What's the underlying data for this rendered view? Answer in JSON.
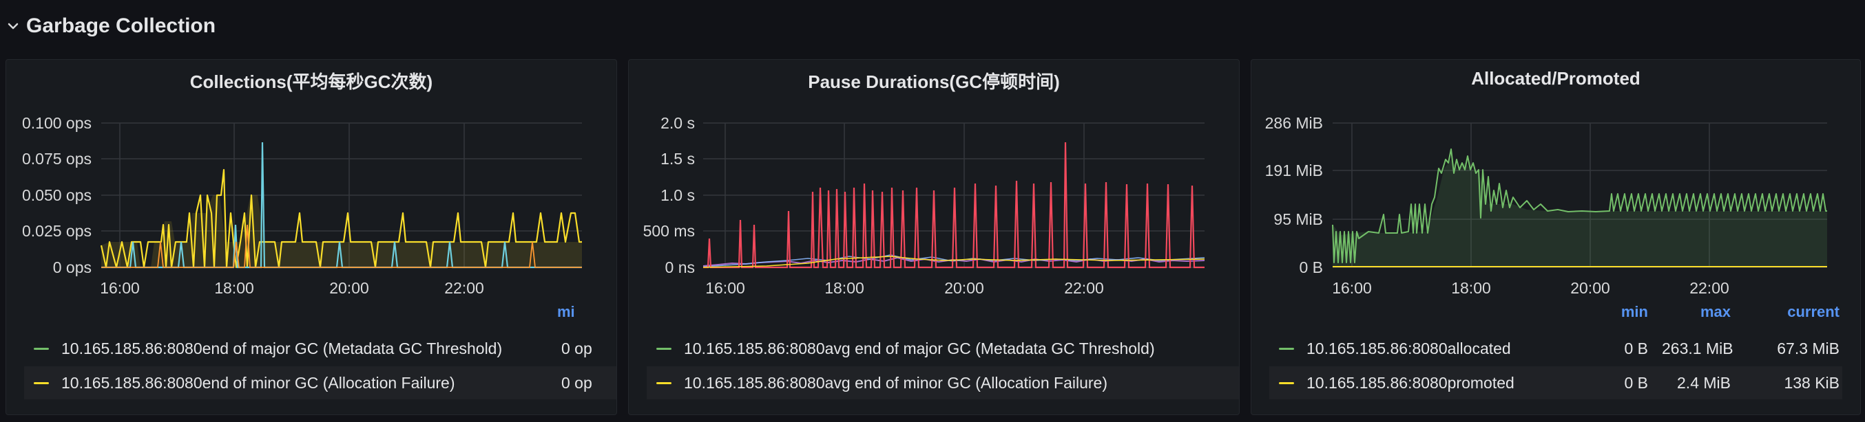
{
  "row": {
    "title": "Garbage Collection"
  },
  "panels": [
    {
      "title": "Collections(平均每秒GC次数)",
      "y_ticks": [
        "0.100 ops",
        "0.075 ops",
        "0.050 ops",
        "0.025 ops",
        "0 ops"
      ],
      "x_ticks": [
        "16:00",
        "18:00",
        "20:00",
        "22:00"
      ],
      "legend_header": {
        "min": "mi"
      },
      "legend": [
        {
          "label": "10.165.185.86:8080end of major GC (Metadata GC Threshold)",
          "min": "0 op",
          "color": "#73bf69"
        },
        {
          "label": "10.165.185.86:8080end of minor GC (Allocation Failure)",
          "min": "0 op",
          "color": "#fade2a"
        }
      ]
    },
    {
      "title": "Pause Durations(GC停顿时间)",
      "y_ticks": [
        "2.0 s",
        "1.5 s",
        "1.0 s",
        "500 ms",
        "0 ns"
      ],
      "x_ticks": [
        "16:00",
        "18:00",
        "20:00",
        "22:00"
      ],
      "legend": [
        {
          "label": "10.165.185.86:8080avg end of major GC (Metadata GC Threshold)",
          "color": "#73bf69"
        },
        {
          "label": "10.165.185.86:8080avg end of minor GC (Allocation Failure)",
          "color": "#fade2a"
        }
      ]
    },
    {
      "title": "Allocated/Promoted",
      "y_ticks": [
        "286 MiB",
        "191 MiB",
        "95 MiB",
        "0 B"
      ],
      "x_ticks": [
        "16:00",
        "18:00",
        "20:00",
        "22:00"
      ],
      "legend_header": {
        "min": "min",
        "max": "max",
        "current": "current"
      },
      "legend": [
        {
          "label": "10.165.185.86:8080allocated",
          "min": "0 B",
          "max": "263.1 MiB",
          "current": "67.3 MiB",
          "color": "#73bf69"
        },
        {
          "label": "10.165.185.86:8080promoted",
          "min": "0 B",
          "max": "2.4 MiB",
          "current": "138 KiB",
          "color": "#fade2a"
        }
      ]
    }
  ],
  "colors": {
    "background": "#111217",
    "panel": "#181b1f",
    "legend_header": "#5794f2",
    "green": "#73bf69",
    "yellow": "#fade2a",
    "orange": "#ff9830",
    "red": "#f2495c",
    "blue": "#8ab8ff",
    "purple": "#b877d9",
    "teal": "#6ed0e0"
  }
}
